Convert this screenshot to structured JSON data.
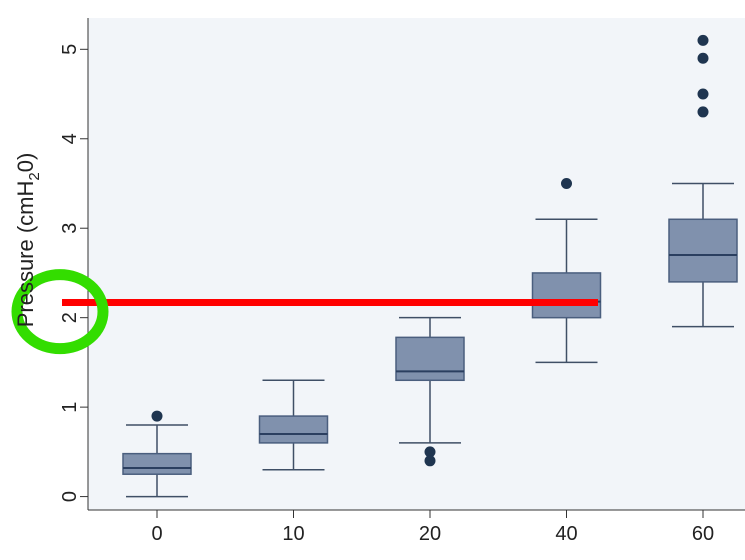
{
  "chart_data": {
    "type": "box",
    "ylabel": "Pressure (cmH",
    "ylabel_sub": "2",
    "ylabel_end": "0)",
    "categories": [
      "0",
      "10",
      "20",
      "40",
      "60"
    ],
    "ylim": [
      -0.15,
      5.35
    ],
    "yticks": [
      0,
      1,
      2,
      3,
      4,
      5
    ],
    "ytick_labels": [
      "0",
      "1",
      "2",
      "3",
      "4",
      "5"
    ],
    "grid": false,
    "boxes": [
      {
        "category": "0",
        "whisker_low": 0.0,
        "q1": 0.25,
        "median": 0.32,
        "q3": 0.48,
        "whisker_high": 0.8,
        "outliers": [
          0.9
        ]
      },
      {
        "category": "10",
        "whisker_low": 0.3,
        "q1": 0.6,
        "median": 0.7,
        "q3": 0.9,
        "whisker_high": 1.3,
        "outliers": []
      },
      {
        "category": "20",
        "whisker_low": 0.6,
        "q1": 1.3,
        "median": 1.4,
        "q3": 1.78,
        "whisker_high": 2.0,
        "outliers": [
          0.5,
          0.4
        ]
      },
      {
        "category": "40",
        "whisker_low": 1.5,
        "q1": 2.0,
        "median": 2.18,
        "q3": 2.5,
        "whisker_high": 3.1,
        "outliers": [
          3.5
        ]
      },
      {
        "category": "60",
        "whisker_low": 1.9,
        "q1": 2.4,
        "median": 2.7,
        "q3": 3.1,
        "whisker_high": 3.5,
        "outliers": [
          4.3,
          4.5,
          4.9,
          5.1
        ]
      }
    ],
    "annotations": {
      "reference_line": {
        "y": 2.17,
        "color": "#ff0000"
      },
      "highlight_circle": {
        "y": 2.0,
        "color": "#33dd00"
      }
    },
    "colors": {
      "box_fill": "#8091ad",
      "box_stroke": "#4a5e7e",
      "median": "#2b3f60",
      "whisker": "#3f4f66",
      "outlier": "#1f3550",
      "plot_background": "#f2f5f9",
      "outer_background": "#ffffff"
    }
  }
}
